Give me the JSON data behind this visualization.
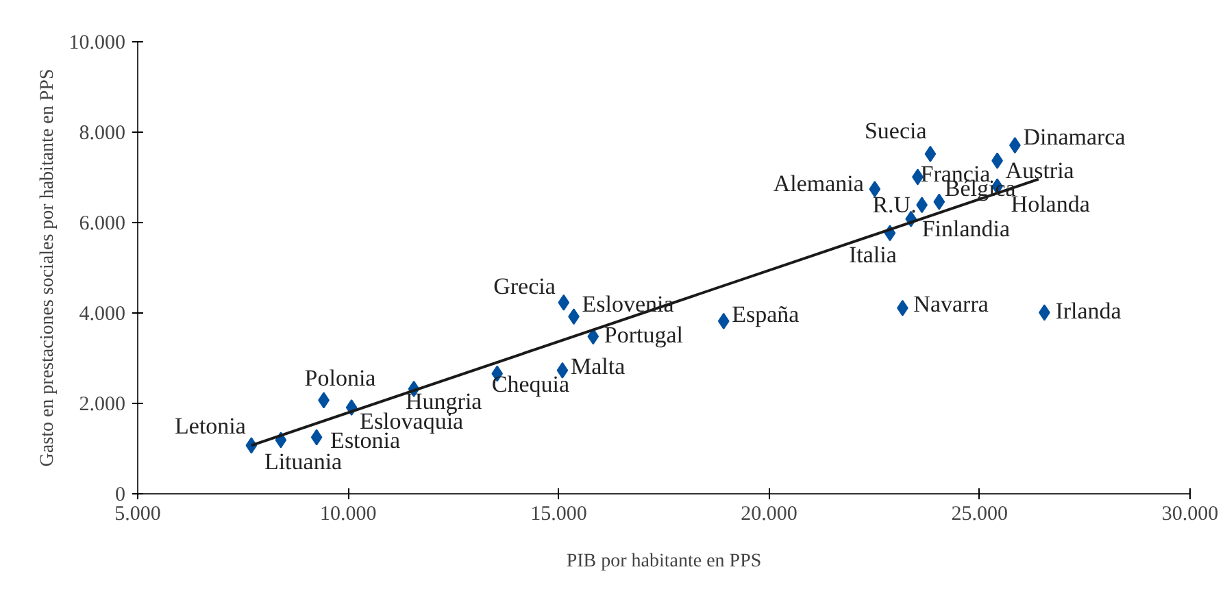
{
  "chart_data": {
    "type": "scatter",
    "xlabel": "PIB por habitante en PPS",
    "ylabel": "Gasto en prestaciones sociales por habitante en PPS",
    "xlim": [
      5000,
      30000
    ],
    "ylim": [
      0,
      10000
    ],
    "xticks": [
      {
        "value": 5000,
        "label": "5.000"
      },
      {
        "value": 10000,
        "label": "10.000"
      },
      {
        "value": 15000,
        "label": "15.000"
      },
      {
        "value": 20000,
        "label": "20.000"
      },
      {
        "value": 25000,
        "label": "25.000"
      },
      {
        "value": 30000,
        "label": "30.000"
      }
    ],
    "yticks": [
      {
        "value": 0,
        "label": "0"
      },
      {
        "value": 2000,
        "label": "2.000"
      },
      {
        "value": 4000,
        "label": "4.000"
      },
      {
        "value": 6000,
        "label": "6.000"
      },
      {
        "value": 8000,
        "label": "8.000"
      },
      {
        "value": 10000,
        "label": "10.000"
      }
    ],
    "grid": false,
    "series": [
      {
        "marker": "diamond",
        "color": "#0050a0",
        "x": [
          7700,
          8400,
          9250,
          9420,
          10080,
          11560,
          13540,
          15090,
          15120,
          15360,
          15820,
          18920,
          23170,
          26540,
          22870,
          23370,
          23630,
          24040,
          22510,
          23530,
          23830,
          25420,
          25420,
          25840
        ],
        "values": [
          1070,
          1190,
          1250,
          2070,
          1910,
          2320,
          2660,
          2730,
          4230,
          3920,
          3480,
          3820,
          4110,
          4010,
          5770,
          6080,
          6390,
          6460,
          6740,
          7010,
          7520,
          7370,
          6800,
          7710
        ]
      },
      {
        "type": "line",
        "color": "#1a1a1a",
        "x": [
          7700,
          26400
        ],
        "values": [
          1070,
          6960
        ]
      }
    ],
    "annotations": [
      {
        "text": "Letonia",
        "x": 7700,
        "y": 1070
      },
      {
        "text": "Lituania",
        "x": 8400,
        "y": 1190
      },
      {
        "text": "Estonia",
        "x": 9250,
        "y": 1250
      },
      {
        "text": "Polonia",
        "x": 9420,
        "y": 2070
      },
      {
        "text": "Eslovaquia",
        "x": 10080,
        "y": 1910
      },
      {
        "text": "Hungria",
        "x": 11560,
        "y": 2320
      },
      {
        "text": "Chequia",
        "x": 13540,
        "y": 2660
      },
      {
        "text": "Malta",
        "x": 15090,
        "y": 2730
      },
      {
        "text": "Grecia",
        "x": 15120,
        "y": 4230
      },
      {
        "text": "Eslovenia",
        "x": 15360,
        "y": 3920
      },
      {
        "text": "Portugal",
        "x": 15820,
        "y": 3480
      },
      {
        "text": "España",
        "x": 18920,
        "y": 3820
      },
      {
        "text": "Navarra",
        "x": 23170,
        "y": 4110
      },
      {
        "text": "Irlanda",
        "x": 26540,
        "y": 4010
      },
      {
        "text": "Italia",
        "x": 22870,
        "y": 5770
      },
      {
        "text": "Finlandia",
        "x": 23370,
        "y": 6080
      },
      {
        "text": "R.U.",
        "x": 23630,
        "y": 6390
      },
      {
        "text": "Bélgica",
        "x": 24040,
        "y": 6460
      },
      {
        "text": "Alemania",
        "x": 22510,
        "y": 6740
      },
      {
        "text": "Francia",
        "x": 23530,
        "y": 7010
      },
      {
        "text": "Suecia",
        "x": 23830,
        "y": 7520
      },
      {
        "text": "Austria",
        "x": 25420,
        "y": 7370
      },
      {
        "text": "Holanda",
        "x": 25420,
        "y": 6800
      },
      {
        "text": "Dinamarca",
        "x": 25840,
        "y": 7710
      }
    ]
  }
}
